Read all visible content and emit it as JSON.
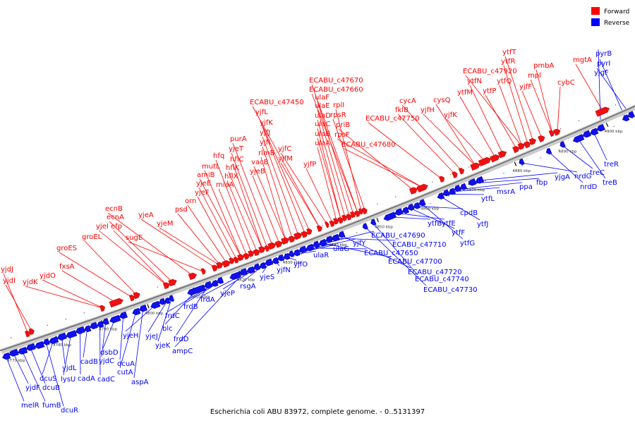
{
  "caption": "Escherichia coli ABU 83972, complete genome. - 0..5131397",
  "legend": [
    {
      "label": "Forward",
      "color": "#ff0000"
    },
    {
      "label": "Reverse",
      "color": "#0000ff"
    }
  ],
  "colors": {
    "forward_fill": "#ee1111",
    "forward_stroke": "#cc0000",
    "reverse_fill": "#1111ee",
    "reverse_stroke": "#0000aa",
    "axis": "#777777",
    "tick": "#000000"
  },
  "kbp_ticks": [
    "4770 kbp",
    "4780 kbp",
    "4790 kbp",
    "4800 kbp",
    "4810 kbp",
    "4820 kbp",
    "4830 kbp",
    "4840 kbp",
    "4850 kbp",
    "4860 kbp",
    "4870 kbp",
    "4880 kbp",
    "4890 kbp",
    "4900 kbp"
  ],
  "forward_labels": [
    "yjdJ",
    "yjdI",
    "yjdK",
    "yjdO",
    "fxsA",
    "groES",
    "groEL",
    "yjeI",
    "efp",
    "ecnA",
    "ecnB",
    "sugE",
    "yjeA",
    "yjeM",
    "psd",
    "orn",
    "yjeF",
    "yjeE",
    "amiB",
    "mutL",
    "miaA",
    "hfq",
    "hflX",
    "hflK",
    "hflC",
    "yjeT",
    "purA",
    "yjeB",
    "vacB",
    "rlmB",
    "yjfI",
    "yjfJ",
    "yjfK",
    "yjfL",
    "ECABU_c47450",
    "yjfM",
    "yjfC",
    "yjfP",
    "ulaA",
    "ulaB",
    "ulaC",
    "ulaD",
    "ulaE",
    "ulaF",
    "ECABU_c47660",
    "ECABU_c47670",
    "rplI",
    "rpsR",
    "priB",
    "rpsF",
    "ECABU_c47680",
    "ECABU_c47750",
    "fklB",
    "cycA",
    "yjfH",
    "cysQ",
    "yjfK",
    "ytfM",
    "ytfN",
    "ytfP",
    "ECABU_c47920",
    "ytfQ",
    "ytfR",
    "ytfT",
    "yjfF",
    "mpl",
    "pmbA",
    "cybC",
    "mgtA"
  ],
  "reverse_labels": [
    "melR",
    "yjdF",
    "fumB",
    "dcuB",
    "dcuR",
    "dcuS",
    "yjdL",
    "lysU",
    "cadA",
    "cadB",
    "cadC",
    "yjdC",
    "dsbD",
    "dcuA",
    "cutA",
    "aspA",
    "yjeH",
    "yjeJ",
    "yjeK",
    "blc",
    "frdD",
    "frdC",
    "frdB",
    "ampC",
    "frdA",
    "yjeP",
    "rsgA",
    "yjeS",
    "yjfN",
    "yjfO",
    "ulaR",
    "ulaG",
    "yjfY",
    "ECABU_c47650",
    "ECABU_c47690",
    "ECABU_c47700",
    "ECABU_c47710",
    "ECABU_c47720",
    "ECABU_c47730",
    "ECABU_c47740",
    "ytfB",
    "ytfE",
    "ytfF",
    "cpdB",
    "ytfG",
    "ytfJ",
    "ytfL",
    "msrA",
    "ppa",
    "fbp",
    "yjgA",
    "nrdG",
    "nrdD",
    "treC",
    "treB",
    "treR",
    "pyrB",
    "pyrI",
    "yjgF"
  ]
}
